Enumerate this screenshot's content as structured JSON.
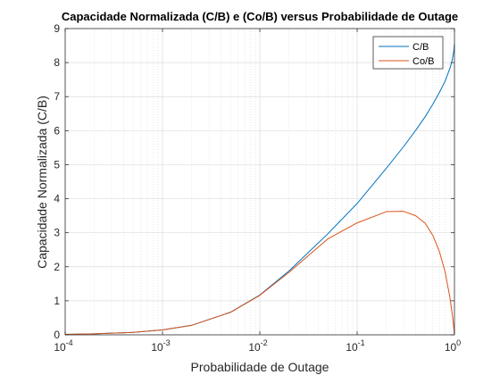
{
  "chart_data": {
    "type": "line",
    "title": "Capacidade Normalizada (C/B) e (Co/B) versus Probabilidade de Outage",
    "xlabel": "Probabilidade de Outage",
    "ylabel": "Capacidade Normalizada (C/B)",
    "x_scale": "log",
    "xlim": [
      0.0001,
      1
    ],
    "ylim": [
      0,
      9
    ],
    "x_ticks": [
      {
        "value": 0.0001,
        "base": "10",
        "exp": "-4"
      },
      {
        "value": 0.001,
        "base": "10",
        "exp": "-3"
      },
      {
        "value": 0.01,
        "base": "10",
        "exp": "-2"
      },
      {
        "value": 0.1,
        "base": "10",
        "exp": "-1"
      },
      {
        "value": 1,
        "base": "10",
        "exp": "0"
      }
    ],
    "y_ticks": [
      "0",
      "1",
      "2",
      "3",
      "4",
      "5",
      "6",
      "7",
      "8",
      "9"
    ],
    "grid": true,
    "minor_grid_x": true,
    "legend_position": "top-right",
    "series": [
      {
        "name": "C/B",
        "color": "#0072BD",
        "x": [
          0.0001,
          0.0002,
          0.0005,
          0.001,
          0.002,
          0.005,
          0.01,
          0.02,
          0.05,
          0.1,
          0.2,
          0.3,
          0.4,
          0.5,
          0.6,
          0.7,
          0.8,
          0.9,
          0.95,
          0.99,
          0.999
        ],
        "y": [
          0.0144,
          0.0289,
          0.072,
          0.143,
          0.281,
          0.665,
          1.17,
          1.88,
          2.97,
          3.86,
          4.9,
          5.53,
          6.01,
          6.41,
          6.78,
          7.12,
          7.45,
          7.84,
          8.08,
          8.38,
          8.55
        ]
      },
      {
        "name": "Co/B",
        "color": "#D95319",
        "x": [
          0.0001,
          0.0002,
          0.0005,
          0.001,
          0.002,
          0.005,
          0.01,
          0.02,
          0.05,
          0.1,
          0.2,
          0.3,
          0.4,
          0.5,
          0.6,
          0.7,
          0.8,
          0.9,
          0.95,
          0.99,
          0.999
        ],
        "y": [
          0.0144,
          0.0289,
          0.072,
          0.143,
          0.28,
          0.662,
          1.16,
          1.84,
          2.82,
          3.29,
          3.62,
          3.63,
          3.5,
          3.28,
          2.92,
          2.45,
          1.86,
          1.08,
          0.6,
          0.15,
          0.03
        ]
      }
    ]
  }
}
